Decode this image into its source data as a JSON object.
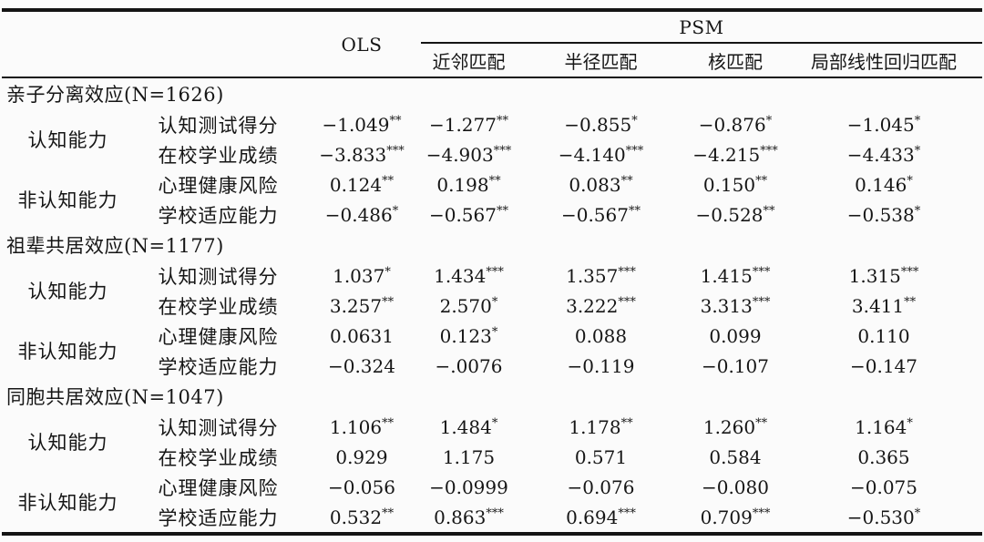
{
  "table": {
    "header": {
      "ols": "OLS",
      "psm": "PSM",
      "psm_columns": [
        "近邻匹配",
        "半径匹配",
        "核匹配",
        "局部线性回归匹配"
      ]
    },
    "sections": [
      {
        "title": "亲子分离效应(N=1626)",
        "groups": [
          {
            "label": "认知能力",
            "rows": [
              {
                "label": "认知测试得分",
                "cells": [
                  {
                    "v": "−1.049",
                    "s": "**"
                  },
                  {
                    "v": "−1.277",
                    "s": "**"
                  },
                  {
                    "v": "−0.855",
                    "s": "*"
                  },
                  {
                    "v": "−0.876",
                    "s": "*"
                  },
                  {
                    "v": "−1.045",
                    "s": "*"
                  }
                ]
              },
              {
                "label": "在校学业成绩",
                "cells": [
                  {
                    "v": "−3.833",
                    "s": "***"
                  },
                  {
                    "v": "−4.903",
                    "s": "***"
                  },
                  {
                    "v": "−4.140",
                    "s": "***"
                  },
                  {
                    "v": "−4.215",
                    "s": "***"
                  },
                  {
                    "v": "−4.433",
                    "s": "*"
                  }
                ]
              }
            ]
          },
          {
            "label": "非认知能力",
            "rows": [
              {
                "label": "心理健康风险",
                "cells": [
                  {
                    "v": "0.124",
                    "s": "**"
                  },
                  {
                    "v": "0.198",
                    "s": "**"
                  },
                  {
                    "v": "0.083",
                    "s": "**"
                  },
                  {
                    "v": "0.150",
                    "s": "**"
                  },
                  {
                    "v": "0.146",
                    "s": "*"
                  }
                ]
              },
              {
                "label": "学校适应能力",
                "cells": [
                  {
                    "v": "−0.486",
                    "s": "*"
                  },
                  {
                    "v": "−0.567",
                    "s": "**"
                  },
                  {
                    "v": "−0.567",
                    "s": "**"
                  },
                  {
                    "v": "−0.528",
                    "s": "**"
                  },
                  {
                    "v": "−0.538",
                    "s": "*"
                  }
                ]
              }
            ]
          }
        ]
      },
      {
        "title": "祖辈共居效应(N=1177)",
        "groups": [
          {
            "label": "认知能力",
            "rows": [
              {
                "label": "认知测试得分",
                "cells": [
                  {
                    "v": "1.037",
                    "s": "*"
                  },
                  {
                    "v": "1.434",
                    "s": "***"
                  },
                  {
                    "v": "1.357",
                    "s": "***"
                  },
                  {
                    "v": "1.415",
                    "s": "***"
                  },
                  {
                    "v": "1.315",
                    "s": "***"
                  }
                ]
              },
              {
                "label": "在校学业成绩",
                "cells": [
                  {
                    "v": "3.257",
                    "s": "**"
                  },
                  {
                    "v": "2.570",
                    "s": "*"
                  },
                  {
                    "v": "3.222",
                    "s": "***"
                  },
                  {
                    "v": "3.313",
                    "s": "***"
                  },
                  {
                    "v": "3.411",
                    "s": "**"
                  }
                ]
              }
            ]
          },
          {
            "label": "非认知能力",
            "rows": [
              {
                "label": "心理健康风险",
                "cells": [
                  {
                    "v": "0.0631",
                    "s": ""
                  },
                  {
                    "v": "0.123",
                    "s": "*"
                  },
                  {
                    "v": "0.088",
                    "s": ""
                  },
                  {
                    "v": "0.099",
                    "s": ""
                  },
                  {
                    "v": "0.110",
                    "s": ""
                  }
                ]
              },
              {
                "label": "学校适应能力",
                "cells": [
                  {
                    "v": "−0.324",
                    "s": ""
                  },
                  {
                    "v": "−.0076",
                    "s": ""
                  },
                  {
                    "v": "−0.119",
                    "s": ""
                  },
                  {
                    "v": "−0.107",
                    "s": ""
                  },
                  {
                    "v": "−0.147",
                    "s": ""
                  }
                ]
              }
            ]
          }
        ]
      },
      {
        "title": "同胞共居效应(N=1047)",
        "groups": [
          {
            "label": "认知能力",
            "rows": [
              {
                "label": "认知测试得分",
                "cells": [
                  {
                    "v": "1.106",
                    "s": "**"
                  },
                  {
                    "v": "1.484",
                    "s": "*"
                  },
                  {
                    "v": "1.178",
                    "s": "**"
                  },
                  {
                    "v": "1.260",
                    "s": "**"
                  },
                  {
                    "v": "1.164",
                    "s": "*"
                  }
                ]
              },
              {
                "label": "在校学业成绩",
                "cells": [
                  {
                    "v": "0.929",
                    "s": ""
                  },
                  {
                    "v": "1.175",
                    "s": ""
                  },
                  {
                    "v": "0.571",
                    "s": ""
                  },
                  {
                    "v": "0.584",
                    "s": ""
                  },
                  {
                    "v": "0.365",
                    "s": ""
                  }
                ]
              }
            ]
          },
          {
            "label": "非认知能力",
            "rows": [
              {
                "label": "心理健康风险",
                "cells": [
                  {
                    "v": "−0.056",
                    "s": ""
                  },
                  {
                    "v": "−0.0999",
                    "s": ""
                  },
                  {
                    "v": "−0.076",
                    "s": ""
                  },
                  {
                    "v": "−0.080",
                    "s": ""
                  },
                  {
                    "v": "−0.075",
                    "s": ""
                  }
                ]
              },
              {
                "label": "学校适应能力",
                "cells": [
                  {
                    "v": "0.532",
                    "s": "**"
                  },
                  {
                    "v": "0.863",
                    "s": "***"
                  },
                  {
                    "v": "0.694",
                    "s": "***"
                  },
                  {
                    "v": "0.709",
                    "s": "***"
                  },
                  {
                    "v": "−0.530",
                    "s": "*"
                  }
                ]
              }
            ]
          }
        ]
      }
    ]
  }
}
